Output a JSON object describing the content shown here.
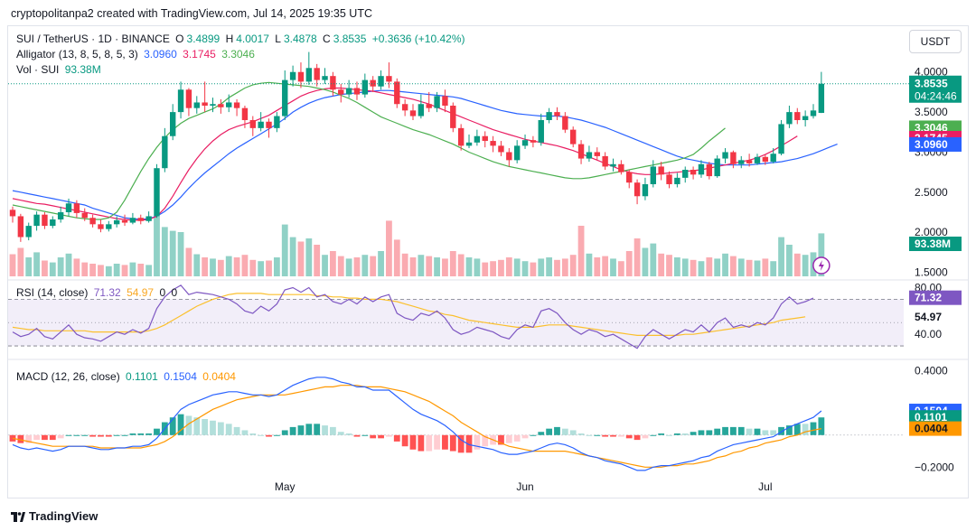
{
  "caption": "cryptopolitanpa2 created with TradingView.com, Jul 14, 2025 19:35 UTC",
  "symbol_title": "SUI / TetherUS · 1D · BINANCE",
  "ohlc": {
    "o_label": "O",
    "o": "3.4899",
    "h_label": "H",
    "h": "4.0017",
    "l_label": "L",
    "l": "3.4878",
    "c_label": "C",
    "c": "3.8535",
    "change": "+0.3636 (+10.42%)"
  },
  "alligator": {
    "label": "Alligator (13, 8, 5, 8, 5, 3)",
    "jaw": "3.0960",
    "teeth": "3.1745",
    "lips": "3.3046"
  },
  "volume": {
    "label": "Vol · SUI",
    "value": "93.38M"
  },
  "rsi": {
    "label": "RSI (14, close)",
    "rsi": "71.32",
    "ma": "54.97",
    "extra1": "0",
    "extra2": "0"
  },
  "macd": {
    "label": "MACD (12, 26, close)",
    "hist": "0.1101",
    "macd": "0.1504",
    "signal": "0.0404"
  },
  "currency_button": "USDT",
  "footer": "TradingView",
  "colors": {
    "up": "#089981",
    "down": "#f23645",
    "jaw": "#2962ff",
    "teeth": "#e91e63",
    "lips": "#4caf50",
    "rsi": "#7e57c2",
    "rsi_ma": "#fbc02d",
    "macd": "#2962ff",
    "signal": "#ff9800"
  },
  "chart_data": {
    "type": "candlestick",
    "price_axis_ticks": [
      "4.0000",
      "3.5000",
      "3.0000",
      "2.5000",
      "2.0000",
      "1.5000"
    ],
    "price_range": [
      1.45,
      4.2
    ],
    "x_labels": [
      "May",
      "Jun",
      "Jul"
    ],
    "last_price": "3.8535",
    "countdown": "04:24:46",
    "rsi_axis_ticks": [
      "80.00",
      "40.00"
    ],
    "rsi_range": [
      20,
      85
    ],
    "macd_axis_ticks": [
      "0.4000",
      "-0.2000"
    ],
    "macd_range": [
      -0.26,
      0.46
    ],
    "candles": [
      [
        2.28,
        2.2,
        2.32,
        2.12
      ],
      [
        2.2,
        1.94,
        2.23,
        1.88
      ],
      [
        1.94,
        2.08,
        2.12,
        1.9
      ],
      [
        2.08,
        2.22,
        2.26,
        2.02
      ],
      [
        2.22,
        2.08,
        2.25,
        2.04
      ],
      [
        2.08,
        2.16,
        2.2,
        2.05
      ],
      [
        2.16,
        2.25,
        2.32,
        2.12
      ],
      [
        2.25,
        2.36,
        2.42,
        2.2
      ],
      [
        2.36,
        2.24,
        2.4,
        2.18
      ],
      [
        2.24,
        2.18,
        2.3,
        2.14
      ],
      [
        2.18,
        2.1,
        2.22,
        2.06
      ],
      [
        2.1,
        2.04,
        2.16,
        2.0
      ],
      [
        2.04,
        2.1,
        2.14,
        2.01
      ],
      [
        2.1,
        2.15,
        2.2,
        2.06
      ],
      [
        2.15,
        2.12,
        2.22,
        2.08
      ],
      [
        2.12,
        2.18,
        2.24,
        2.1
      ],
      [
        2.18,
        2.14,
        2.22,
        2.1
      ],
      [
        2.14,
        2.2,
        2.26,
        2.12
      ],
      [
        2.2,
        2.8,
        2.85,
        2.18
      ],
      [
        2.8,
        3.2,
        3.3,
        2.75
      ],
      [
        3.2,
        3.5,
        3.6,
        3.15
      ],
      [
        3.5,
        3.78,
        3.88,
        3.42
      ],
      [
        3.78,
        3.55,
        3.8,
        3.45
      ],
      [
        3.55,
        3.62,
        3.7,
        3.48
      ],
      [
        3.62,
        3.58,
        3.88,
        3.5
      ],
      [
        3.58,
        3.6,
        3.68,
        3.5
      ],
      [
        3.6,
        3.56,
        3.66,
        3.48
      ],
      [
        3.56,
        3.62,
        3.72,
        3.5
      ],
      [
        3.62,
        3.55,
        3.66,
        3.45
      ],
      [
        3.55,
        3.4,
        3.58,
        3.3
      ],
      [
        3.4,
        3.3,
        3.45,
        3.2
      ],
      [
        3.3,
        3.38,
        3.5,
        3.26
      ],
      [
        3.38,
        3.3,
        3.42,
        3.18
      ],
      [
        3.3,
        3.45,
        3.5,
        3.25
      ],
      [
        3.45,
        3.9,
        4.02,
        3.4
      ],
      [
        3.9,
        4.0,
        4.08,
        3.82
      ],
      [
        4.0,
        3.88,
        4.12,
        3.8
      ],
      [
        3.88,
        4.05,
        4.25,
        3.84
      ],
      [
        4.05,
        3.9,
        4.1,
        3.82
      ],
      [
        3.9,
        3.95,
        4.05,
        3.85
      ],
      [
        3.95,
        3.78,
        4.0,
        3.7
      ],
      [
        3.78,
        3.72,
        3.85,
        3.62
      ],
      [
        3.72,
        3.8,
        3.9,
        3.68
      ],
      [
        3.8,
        3.72,
        3.88,
        3.65
      ],
      [
        3.72,
        3.9,
        3.98,
        3.68
      ],
      [
        3.9,
        3.82,
        3.95,
        3.75
      ],
      [
        3.82,
        3.95,
        4.02,
        3.78
      ],
      [
        3.95,
        3.88,
        4.12,
        3.8
      ],
      [
        3.88,
        3.6,
        3.92,
        3.55
      ],
      [
        3.6,
        3.52,
        3.66,
        3.45
      ],
      [
        3.52,
        3.45,
        3.6,
        3.4
      ],
      [
        3.45,
        3.6,
        3.72,
        3.42
      ],
      [
        3.6,
        3.55,
        3.75,
        3.5
      ],
      [
        3.55,
        3.7,
        3.75,
        3.5
      ],
      [
        3.7,
        3.58,
        3.78,
        3.5
      ],
      [
        3.58,
        3.3,
        3.62,
        3.25
      ],
      [
        3.3,
        3.08,
        3.35,
        3.02
      ],
      [
        3.08,
        3.12,
        3.22,
        3.05
      ],
      [
        3.12,
        3.2,
        3.28,
        3.08
      ],
      [
        3.2,
        3.14,
        3.26,
        3.06
      ],
      [
        3.14,
        3.08,
        3.2,
        3.0
      ],
      [
        3.08,
        3.0,
        3.14,
        2.95
      ],
      [
        3.0,
        2.9,
        3.05,
        2.82
      ],
      [
        2.9,
        3.08,
        3.15,
        2.86
      ],
      [
        3.08,
        3.15,
        3.22,
        3.04
      ],
      [
        3.15,
        3.12,
        3.2,
        3.06
      ],
      [
        3.12,
        3.4,
        3.48,
        3.08
      ],
      [
        3.4,
        3.5,
        3.55,
        3.36
      ],
      [
        3.5,
        3.45,
        3.56,
        3.4
      ],
      [
        3.45,
        3.28,
        3.5,
        3.24
      ],
      [
        3.28,
        3.1,
        3.32,
        3.06
      ],
      [
        3.1,
        2.92,
        3.15,
        2.85
      ],
      [
        2.92,
        3.0,
        3.08,
        2.88
      ],
      [
        3.0,
        2.95,
        3.06,
        2.9
      ],
      [
        2.95,
        2.82,
        3.0,
        2.78
      ],
      [
        2.82,
        2.85,
        2.92,
        2.76
      ],
      [
        2.85,
        2.75,
        2.9,
        2.72
      ],
      [
        2.75,
        2.62,
        2.78,
        2.55
      ],
      [
        2.62,
        2.45,
        2.66,
        2.35
      ],
      [
        2.45,
        2.6,
        2.68,
        2.4
      ],
      [
        2.6,
        2.82,
        2.9,
        2.56
      ],
      [
        2.82,
        2.72,
        2.88,
        2.65
      ],
      [
        2.72,
        2.6,
        2.76,
        2.55
      ],
      [
        2.6,
        2.68,
        2.74,
        2.56
      ],
      [
        2.68,
        2.78,
        2.82,
        2.62
      ],
      [
        2.78,
        2.72,
        2.82,
        2.66
      ],
      [
        2.72,
        2.85,
        2.9,
        2.68
      ],
      [
        2.85,
        2.7,
        2.88,
        2.66
      ],
      [
        2.7,
        2.92,
        2.96,
        2.68
      ],
      [
        2.92,
        3.0,
        3.05,
        2.86
      ],
      [
        3.0,
        2.85,
        3.02,
        2.8
      ],
      [
        2.85,
        2.9,
        2.95,
        2.8
      ],
      [
        2.9,
        2.86,
        2.98,
        2.82
      ],
      [
        2.86,
        2.94,
        2.98,
        2.84
      ],
      [
        2.94,
        2.88,
        2.97,
        2.84
      ],
      [
        2.88,
        2.98,
        3.05,
        2.86
      ],
      [
        2.98,
        3.35,
        3.4,
        2.96
      ],
      [
        3.35,
        3.5,
        3.58,
        3.3
      ],
      [
        3.5,
        3.4,
        3.55,
        3.35
      ],
      [
        3.4,
        3.45,
        3.52,
        3.32
      ],
      [
        3.45,
        3.52,
        3.6,
        3.42
      ],
      [
        3.49,
        3.8535,
        4.0017,
        3.4878
      ]
    ],
    "volumes": [
      0.35,
      0.45,
      0.3,
      0.38,
      0.25,
      0.22,
      0.3,
      0.36,
      0.28,
      0.22,
      0.2,
      0.18,
      0.16,
      0.2,
      0.18,
      0.22,
      0.2,
      0.18,
      0.95,
      0.78,
      0.72,
      0.7,
      0.45,
      0.35,
      0.3,
      0.28,
      0.26,
      0.32,
      0.3,
      0.34,
      0.26,
      0.24,
      0.25,
      0.3,
      0.82,
      0.62,
      0.55,
      0.6,
      0.5,
      0.34,
      0.4,
      0.32,
      0.28,
      0.3,
      0.34,
      0.32,
      0.4,
      0.88,
      0.58,
      0.36,
      0.3,
      0.34,
      0.32,
      0.3,
      0.28,
      0.4,
      0.35,
      0.3,
      0.28,
      0.22,
      0.24,
      0.26,
      0.3,
      0.28,
      0.24,
      0.22,
      0.28,
      0.3,
      0.26,
      0.28,
      0.34,
      0.8,
      0.36,
      0.3,
      0.32,
      0.28,
      0.24,
      0.4,
      0.6,
      0.45,
      0.52,
      0.36,
      0.34,
      0.3,
      0.28,
      0.26,
      0.24,
      0.3,
      0.28,
      0.36,
      0.32,
      0.28,
      0.26,
      0.25,
      0.28,
      0.24,
      0.62,
      0.5,
      0.36,
      0.34,
      0.38,
      0.68
    ],
    "jaw": [
      2.52,
      2.5,
      2.48,
      2.46,
      2.44,
      2.42,
      2.4,
      2.38,
      2.36,
      2.34,
      2.3,
      2.27,
      2.24,
      2.21,
      2.18,
      2.17,
      2.16,
      2.17,
      2.2,
      2.26,
      2.34,
      2.44,
      2.55,
      2.65,
      2.74,
      2.82,
      2.9,
      2.98,
      3.05,
      3.11,
      3.17,
      3.23,
      3.29,
      3.35,
      3.42,
      3.5,
      3.56,
      3.61,
      3.65,
      3.68,
      3.7,
      3.72,
      3.73,
      3.74,
      3.75,
      3.76,
      3.77,
      3.77,
      3.76,
      3.75,
      3.74,
      3.73,
      3.72,
      3.71,
      3.7,
      3.69,
      3.67,
      3.64,
      3.61,
      3.58,
      3.55,
      3.52,
      3.5,
      3.48,
      3.47,
      3.46,
      3.45,
      3.45,
      3.45,
      3.44,
      3.42,
      3.4,
      3.37,
      3.34,
      3.31,
      3.27,
      3.23,
      3.19,
      3.15,
      3.11,
      3.07,
      3.03,
      2.99,
      2.95,
      2.92,
      2.9,
      2.88,
      2.86,
      2.85,
      2.84,
      2.84,
      2.84,
      2.84,
      2.85,
      2.86,
      2.87,
      2.88,
      2.9,
      2.92,
      2.95,
      2.98,
      3.02,
      3.06,
      3.1
    ],
    "teeth": [
      2.42,
      2.4,
      2.38,
      2.36,
      2.35,
      2.33,
      2.31,
      2.29,
      2.27,
      2.25,
      2.23,
      2.21,
      2.19,
      2.17,
      2.16,
      2.15,
      2.15,
      2.16,
      2.2,
      2.3,
      2.45,
      2.62,
      2.78,
      2.92,
      3.04,
      3.14,
      3.22,
      3.28,
      3.32,
      3.35,
      3.38,
      3.42,
      3.46,
      3.52,
      3.58,
      3.64,
      3.7,
      3.74,
      3.77,
      3.79,
      3.8,
      3.8,
      3.79,
      3.78,
      3.77,
      3.76,
      3.74,
      3.72,
      3.7,
      3.68,
      3.66,
      3.63,
      3.6,
      3.56,
      3.52,
      3.48,
      3.44,
      3.4,
      3.36,
      3.32,
      3.28,
      3.25,
      3.22,
      3.19,
      3.16,
      3.14,
      3.12,
      3.1,
      3.08,
      3.05,
      3.02,
      2.98,
      2.94,
      2.9,
      2.86,
      2.82,
      2.78,
      2.75,
      2.73,
      2.72,
      2.72,
      2.73,
      2.74,
      2.75,
      2.76,
      2.77,
      2.78,
      2.8,
      2.82,
      2.84,
      2.86,
      2.88,
      2.9,
      2.93,
      2.97,
      3.02,
      3.08,
      3.14,
      3.2
    ],
    "lips": [
      2.34,
      2.32,
      2.3,
      2.28,
      2.26,
      2.24,
      2.22,
      2.2,
      2.18,
      2.17,
      2.16,
      2.16,
      2.18,
      2.25,
      2.4,
      2.58,
      2.76,
      2.92,
      3.06,
      3.18,
      3.28,
      3.36,
      3.42,
      3.46,
      3.5,
      3.54,
      3.6,
      3.68,
      3.74,
      3.8,
      3.84,
      3.86,
      3.87,
      3.86,
      3.85,
      3.84,
      3.83,
      3.82,
      3.8,
      3.78,
      3.75,
      3.71,
      3.67,
      3.62,
      3.56,
      3.5,
      3.44,
      3.4,
      3.36,
      3.32,
      3.28,
      3.25,
      3.22,
      3.18,
      3.14,
      3.1,
      3.05,
      3.0,
      2.96,
      2.92,
      2.88,
      2.85,
      2.82,
      2.8,
      2.78,
      2.76,
      2.74,
      2.72,
      2.7,
      2.68,
      2.67,
      2.67,
      2.68,
      2.7,
      2.72,
      2.74,
      2.76,
      2.78,
      2.8,
      2.82,
      2.84,
      2.86,
      2.88,
      2.9,
      2.93,
      2.97,
      3.05,
      3.14,
      3.22,
      3.3
    ],
    "rsi_values": [
      42,
      38,
      40,
      45,
      38,
      36,
      42,
      48,
      40,
      37,
      36,
      34,
      38,
      42,
      40,
      44,
      41,
      45,
      62,
      72,
      78,
      82,
      74,
      76,
      75,
      74,
      72,
      70,
      66,
      60,
      58,
      64,
      60,
      66,
      78,
      80,
      76,
      80,
      72,
      74,
      68,
      66,
      70,
      66,
      72,
      68,
      72,
      74,
      58,
      54,
      52,
      58,
      56,
      60,
      54,
      44,
      40,
      42,
      46,
      44,
      42,
      38,
      36,
      44,
      48,
      46,
      60,
      62,
      58,
      50,
      44,
      40,
      44,
      42,
      38,
      40,
      36,
      32,
      28,
      38,
      44,
      40,
      36,
      40,
      44,
      42,
      48,
      42,
      50,
      54,
      46,
      48,
      46,
      50,
      48,
      54,
      66,
      72,
      66,
      68,
      71
    ],
    "rsi_ma": [
      46,
      45,
      44,
      44,
      43,
      43,
      43,
      43,
      43,
      43,
      42,
      42,
      42,
      42,
      42,
      42,
      42,
      43,
      45,
      48,
      52,
      56,
      60,
      64,
      67,
      70,
      72,
      74,
      75,
      75,
      75,
      75,
      74,
      74,
      74,
      74,
      74,
      74,
      73,
      73,
      72,
      72,
      71,
      71,
      70,
      70,
      70,
      69,
      68,
      66,
      64,
      62,
      60,
      59,
      57,
      56,
      54,
      52,
      51,
      50,
      49,
      48,
      47,
      46,
      46,
      46,
      47,
      48,
      48,
      48,
      47,
      46,
      45,
      44,
      43,
      42,
      41,
      40,
      39,
      39,
      39,
      39,
      39,
      39,
      40,
      40,
      41,
      42,
      43,
      44,
      45,
      46,
      47,
      48,
      49,
      50,
      52,
      53,
      54,
      54.97
    ],
    "macd_values": [
      -0.06,
      -0.08,
      -0.09,
      -0.08,
      -0.09,
      -0.1,
      -0.09,
      -0.07,
      -0.07,
      -0.07,
      -0.08,
      -0.09,
      -0.09,
      -0.08,
      -0.08,
      -0.07,
      -0.07,
      -0.06,
      -0.02,
      0.04,
      0.1,
      0.16,
      0.19,
      0.21,
      0.23,
      0.25,
      0.26,
      0.27,
      0.27,
      0.26,
      0.25,
      0.25,
      0.24,
      0.25,
      0.28,
      0.31,
      0.33,
      0.35,
      0.36,
      0.36,
      0.35,
      0.33,
      0.32,
      0.3,
      0.3,
      0.28,
      0.28,
      0.28,
      0.24,
      0.2,
      0.16,
      0.13,
      0.11,
      0.09,
      0.06,
      0.02,
      -0.03,
      -0.06,
      -0.07,
      -0.08,
      -0.09,
      -0.11,
      -0.12,
      -0.12,
      -0.11,
      -0.1,
      -0.08,
      -0.06,
      -0.05,
      -0.06,
      -0.08,
      -0.11,
      -0.13,
      -0.14,
      -0.16,
      -0.17,
      -0.18,
      -0.2,
      -0.22,
      -0.22,
      -0.2,
      -0.19,
      -0.19,
      -0.18,
      -0.17,
      -0.16,
      -0.14,
      -0.13,
      -0.1,
      -0.08,
      -0.06,
      -0.05,
      -0.04,
      -0.03,
      -0.02,
      -0.01,
      0.02,
      0.05,
      0.07,
      0.09,
      0.11,
      0.1504
    ],
    "signal_values": [
      -0.02,
      -0.03,
      -0.04,
      -0.05,
      -0.06,
      -0.07,
      -0.07,
      -0.07,
      -0.07,
      -0.07,
      -0.07,
      -0.08,
      -0.08,
      -0.08,
      -0.08,
      -0.08,
      -0.08,
      -0.07,
      -0.06,
      -0.04,
      -0.01,
      0.03,
      0.07,
      0.1,
      0.13,
      0.16,
      0.18,
      0.2,
      0.22,
      0.23,
      0.24,
      0.25,
      0.25,
      0.25,
      0.25,
      0.26,
      0.27,
      0.28,
      0.29,
      0.3,
      0.3,
      0.31,
      0.31,
      0.31,
      0.3,
      0.3,
      0.3,
      0.29,
      0.28,
      0.27,
      0.25,
      0.23,
      0.21,
      0.18,
      0.15,
      0.12,
      0.08,
      0.05,
      0.02,
      -0.01,
      -0.03,
      -0.05,
      -0.07,
      -0.08,
      -0.09,
      -0.1,
      -0.1,
      -0.1,
      -0.1,
      -0.1,
      -0.11,
      -0.12,
      -0.13,
      -0.14,
      -0.15,
      -0.16,
      -0.17,
      -0.18,
      -0.19,
      -0.2,
      -0.2,
      -0.2,
      -0.19,
      -0.19,
      -0.18,
      -0.18,
      -0.17,
      -0.16,
      -0.14,
      -0.13,
      -0.11,
      -0.1,
      -0.08,
      -0.07,
      -0.05,
      -0.04,
      -0.03,
      -0.01,
      0.0,
      0.02,
      0.03,
      0.0404
    ]
  }
}
